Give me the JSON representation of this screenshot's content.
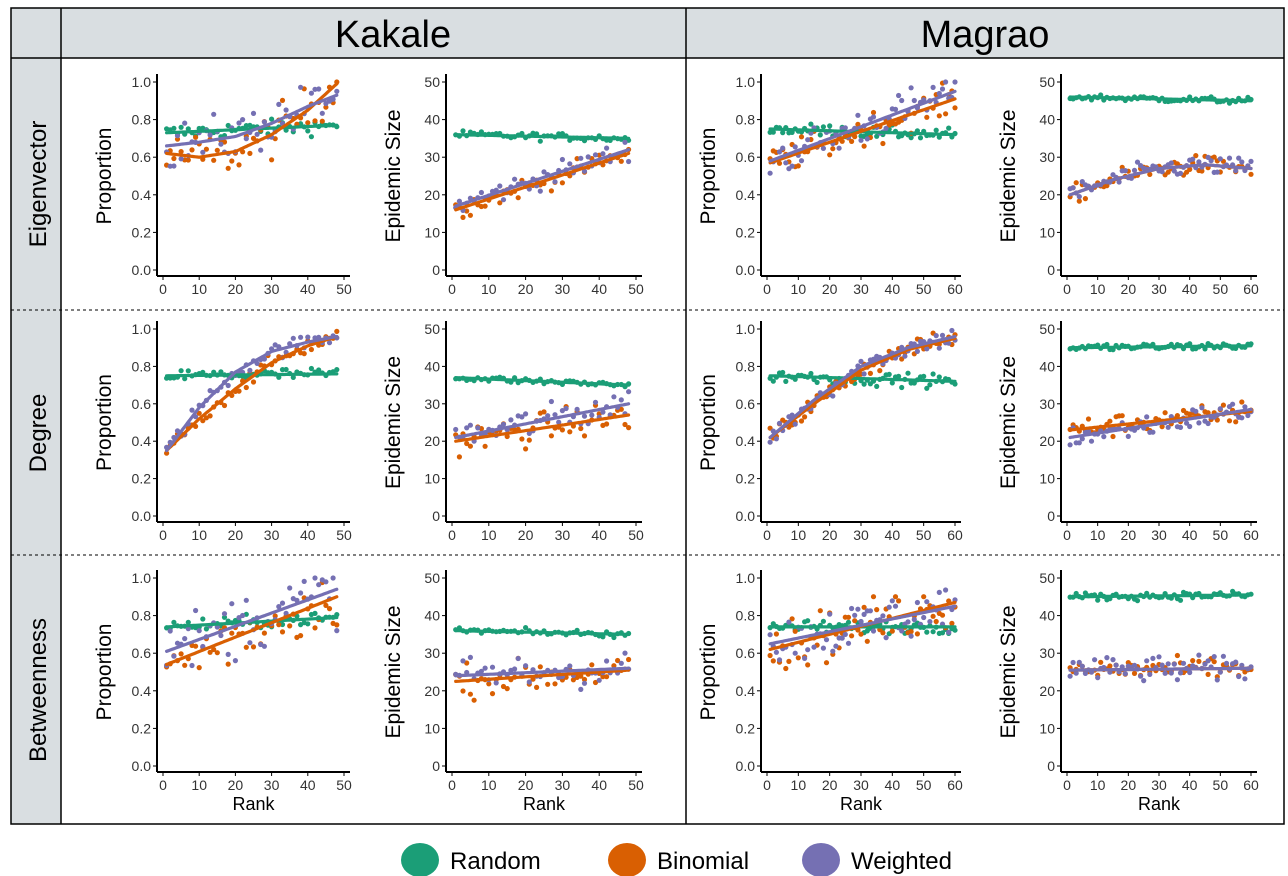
{
  "sites": [
    "Kakale",
    "Magrao"
  ],
  "measures": [
    "Eigenvector",
    "Degree",
    "Betweenness"
  ],
  "ylabels": {
    "proportion": "Proportion",
    "epidemic": "Epidemic Size"
  },
  "xlabel": "Rank",
  "legend": [
    {
      "name": "Random",
      "color": "#1b9e77"
    },
    {
      "name": "Binomial",
      "color": "#d95f02"
    },
    {
      "name": "Weighted",
      "color": "#7570b3"
    }
  ],
  "colors": {
    "Random": "#1b9e77",
    "Binomial": "#d95f02",
    "Weighted": "#7570b3",
    "header_bg": "#d9dee1"
  },
  "chart_data": [
    {
      "type": "scatter",
      "site": "Kakale",
      "measure": "Eigenvector",
      "ylabel": "Proportion",
      "xlabel": "",
      "xlim": [
        0,
        50
      ],
      "ylim": [
        0,
        1
      ],
      "xticks": [
        "0",
        "10",
        "20",
        "30",
        "40",
        "50"
      ],
      "yticks": [
        "0.0",
        "0.2",
        "0.4",
        "0.6",
        "0.8",
        "1.0"
      ],
      "trend": {
        "Random": [
          [
            1,
            0.73
          ],
          [
            48,
            0.77
          ]
        ],
        "Binomial": [
          [
            1,
            0.62
          ],
          [
            10,
            0.6
          ],
          [
            20,
            0.63
          ],
          [
            30,
            0.72
          ],
          [
            40,
            0.85
          ],
          [
            48,
            0.99
          ]
        ],
        "Weighted": [
          [
            1,
            0.66
          ],
          [
            10,
            0.68
          ],
          [
            20,
            0.71
          ],
          [
            30,
            0.78
          ],
          [
            40,
            0.87
          ],
          [
            48,
            0.93
          ]
        ]
      },
      "spread": {
        "Random": 0.05,
        "Binomial": 0.15,
        "Weighted": 0.15
      }
    },
    {
      "type": "scatter",
      "site": "Kakale",
      "measure": "Eigenvector",
      "ylabel": "Epidemic Size",
      "xlabel": "",
      "xlim": [
        0,
        50
      ],
      "ylim": [
        0,
        50
      ],
      "xticks": [
        "0",
        "10",
        "20",
        "30",
        "40",
        "50"
      ],
      "yticks": [
        "0",
        "10",
        "20",
        "30",
        "40",
        "50"
      ],
      "trend": {
        "Random": [
          [
            1,
            36
          ],
          [
            48,
            35
          ]
        ],
        "Binomial": [
          [
            1,
            16
          ],
          [
            48,
            31
          ]
        ],
        "Weighted": [
          [
            1,
            17
          ],
          [
            48,
            32
          ]
        ]
      },
      "spread": {
        "Random": 1.2,
        "Binomial": 3,
        "Weighted": 3.5
      }
    },
    {
      "type": "scatter",
      "site": "Magrao",
      "measure": "Eigenvector",
      "ylabel": "Proportion",
      "xlabel": "",
      "xlim": [
        0,
        60
      ],
      "ylim": [
        0,
        1
      ],
      "xticks": [
        "0",
        "10",
        "20",
        "30",
        "40",
        "50",
        "60"
      ],
      "yticks": [
        "0.0",
        "0.2",
        "0.4",
        "0.6",
        "0.8",
        "1.0"
      ],
      "trend": {
        "Random": [
          [
            1,
            0.75
          ],
          [
            60,
            0.72
          ]
        ],
        "Binomial": [
          [
            1,
            0.57
          ],
          [
            60,
            0.91
          ]
        ],
        "Weighted": [
          [
            1,
            0.58
          ],
          [
            60,
            0.95
          ]
        ]
      },
      "spread": {
        "Random": 0.04,
        "Binomial": 0.1,
        "Weighted": 0.12
      }
    },
    {
      "type": "scatter",
      "site": "Magrao",
      "measure": "Eigenvector",
      "ylabel": "Epidemic Size",
      "xlabel": "",
      "xlim": [
        0,
        60
      ],
      "ylim": [
        0,
        50
      ],
      "xticks": [
        "0",
        "10",
        "20",
        "30",
        "40",
        "50",
        "60"
      ],
      "yticks": [
        "0",
        "10",
        "20",
        "30",
        "40",
        "50"
      ],
      "trend": {
        "Random": [
          [
            1,
            46
          ],
          [
            60,
            45
          ]
        ],
        "Binomial": [
          [
            1,
            20
          ],
          [
            15,
            24
          ],
          [
            30,
            27
          ],
          [
            45,
            28
          ],
          [
            60,
            27
          ]
        ],
        "Weighted": [
          [
            1,
            20
          ],
          [
            15,
            24
          ],
          [
            30,
            27
          ],
          [
            45,
            28
          ],
          [
            60,
            27
          ]
        ]
      },
      "spread": {
        "Random": 1,
        "Binomial": 3,
        "Weighted": 3
      }
    },
    {
      "type": "scatter",
      "site": "Kakale",
      "measure": "Degree",
      "ylabel": "Proportion",
      "xlabel": "",
      "xlim": [
        0,
        50
      ],
      "ylim": [
        0,
        1
      ],
      "xticks": [
        "0",
        "10",
        "20",
        "30",
        "40",
        "50"
      ],
      "yticks": [
        "0.0",
        "0.2",
        "0.4",
        "0.6",
        "0.8",
        "1.0"
      ],
      "trend": {
        "Random": [
          [
            1,
            0.75
          ],
          [
            48,
            0.76
          ]
        ],
        "Binomial": [
          [
            1,
            0.35
          ],
          [
            10,
            0.52
          ],
          [
            20,
            0.68
          ],
          [
            30,
            0.82
          ],
          [
            40,
            0.91
          ],
          [
            48,
            0.96
          ]
        ],
        "Weighted": [
          [
            1,
            0.35
          ],
          [
            10,
            0.58
          ],
          [
            20,
            0.77
          ],
          [
            30,
            0.88
          ],
          [
            40,
            0.93
          ],
          [
            48,
            0.96
          ]
        ]
      },
      "spread": {
        "Random": 0.04,
        "Binomial": 0.05,
        "Weighted": 0.05
      }
    },
    {
      "type": "scatter",
      "site": "Kakale",
      "measure": "Degree",
      "ylabel": "Epidemic Size",
      "xlabel": "",
      "xlim": [
        0,
        50
      ],
      "ylim": [
        0,
        50
      ],
      "xticks": [
        "0",
        "10",
        "20",
        "30",
        "40",
        "50"
      ],
      "yticks": [
        "0",
        "10",
        "20",
        "30",
        "40",
        "50"
      ],
      "trend": {
        "Random": [
          [
            1,
            37
          ],
          [
            48,
            35
          ]
        ],
        "Binomial": [
          [
            1,
            20
          ],
          [
            48,
            27
          ]
        ],
        "Weighted": [
          [
            1,
            21
          ],
          [
            48,
            30
          ]
        ]
      },
      "spread": {
        "Random": 1,
        "Binomial": 5,
        "Weighted": 5
      }
    },
    {
      "type": "scatter",
      "site": "Magrao",
      "measure": "Degree",
      "ylabel": "Proportion",
      "xlabel": "",
      "xlim": [
        0,
        60
      ],
      "ylim": [
        0,
        1
      ],
      "xticks": [
        "0",
        "10",
        "20",
        "30",
        "40",
        "50",
        "60"
      ],
      "yticks": [
        "0.0",
        "0.2",
        "0.4",
        "0.6",
        "0.8",
        "1.0"
      ],
      "trend": {
        "Random": [
          [
            1,
            0.75
          ],
          [
            60,
            0.72
          ]
        ],
        "Binomial": [
          [
            1,
            0.42
          ],
          [
            15,
            0.6
          ],
          [
            30,
            0.78
          ],
          [
            45,
            0.89
          ],
          [
            60,
            0.95
          ]
        ],
        "Weighted": [
          [
            1,
            0.42
          ],
          [
            15,
            0.62
          ],
          [
            30,
            0.8
          ],
          [
            45,
            0.9
          ],
          [
            60,
            0.96
          ]
        ]
      },
      "spread": {
        "Random": 0.04,
        "Binomial": 0.06,
        "Weighted": 0.06
      }
    },
    {
      "type": "scatter",
      "site": "Magrao",
      "measure": "Degree",
      "ylabel": "Epidemic Size",
      "xlabel": "",
      "xlim": [
        0,
        60
      ],
      "ylim": [
        0,
        50
      ],
      "xticks": [
        "0",
        "10",
        "20",
        "30",
        "40",
        "50",
        "60"
      ],
      "yticks": [
        "0",
        "10",
        "20",
        "30",
        "40",
        "50"
      ],
      "trend": {
        "Random": [
          [
            1,
            45
          ],
          [
            60,
            45.5
          ]
        ],
        "Binomial": [
          [
            1,
            23
          ],
          [
            60,
            28
          ]
        ],
        "Weighted": [
          [
            1,
            21
          ],
          [
            60,
            28.5
          ]
        ]
      },
      "spread": {
        "Random": 1.2,
        "Binomial": 3.5,
        "Weighted": 3.5
      }
    },
    {
      "type": "scatter",
      "site": "Kakale",
      "measure": "Betweenness",
      "ylabel": "Proportion",
      "xlabel": "Rank",
      "xlim": [
        0,
        50
      ],
      "ylim": [
        0,
        1
      ],
      "xticks": [
        "0",
        "10",
        "20",
        "30",
        "40",
        "50"
      ],
      "yticks": [
        "0.0",
        "0.2",
        "0.4",
        "0.6",
        "0.8",
        "1.0"
      ],
      "trend": {
        "Random": [
          [
            1,
            0.74
          ],
          [
            48,
            0.79
          ]
        ],
        "Binomial": [
          [
            1,
            0.54
          ],
          [
            48,
            0.9
          ]
        ],
        "Weighted": [
          [
            1,
            0.61
          ],
          [
            48,
            0.94
          ]
        ]
      },
      "spread": {
        "Random": 0.04,
        "Binomial": 0.18,
        "Weighted": 0.2
      }
    },
    {
      "type": "scatter",
      "site": "Kakale",
      "measure": "Betweenness",
      "ylabel": "Epidemic Size",
      "xlabel": "Rank",
      "xlim": [
        0,
        50
      ],
      "ylim": [
        0,
        50
      ],
      "xticks": [
        "0",
        "10",
        "20",
        "30",
        "40",
        "50"
      ],
      "yticks": [
        "0",
        "10",
        "20",
        "30",
        "40",
        "50"
      ],
      "trend": {
        "Random": [
          [
            1,
            36
          ],
          [
            48,
            35
          ]
        ],
        "Binomial": [
          [
            1,
            22.5
          ],
          [
            48,
            25.5
          ]
        ],
        "Weighted": [
          [
            1,
            24
          ],
          [
            48,
            26
          ]
        ]
      },
      "spread": {
        "Random": 1,
        "Binomial": 5,
        "Weighted": 5.5
      }
    },
    {
      "type": "scatter",
      "site": "Magrao",
      "measure": "Betweenness",
      "ylabel": "Proportion",
      "xlabel": "Rank",
      "xlim": [
        0,
        60
      ],
      "ylim": [
        0,
        1
      ],
      "xticks": [
        "0",
        "10",
        "20",
        "30",
        "40",
        "50",
        "60"
      ],
      "yticks": [
        "0.0",
        "0.2",
        "0.4",
        "0.6",
        "0.8",
        "1.0"
      ],
      "trend": {
        "Random": [
          [
            1,
            0.74
          ],
          [
            60,
            0.74
          ]
        ],
        "Binomial": [
          [
            1,
            0.62
          ],
          [
            60,
            0.87
          ]
        ],
        "Weighted": [
          [
            1,
            0.65
          ],
          [
            60,
            0.85
          ]
        ]
      },
      "spread": {
        "Random": 0.04,
        "Binomial": 0.16,
        "Weighted": 0.16
      }
    },
    {
      "type": "scatter",
      "site": "Magrao",
      "measure": "Betweenness",
      "ylabel": "Epidemic Size",
      "xlabel": "Rank",
      "xlim": [
        0,
        60
      ],
      "ylim": [
        0,
        50
      ],
      "xticks": [
        "0",
        "10",
        "20",
        "30",
        "40",
        "50",
        "60"
      ],
      "yticks": [
        "0",
        "10",
        "20",
        "30",
        "40",
        "50"
      ],
      "trend": {
        "Random": [
          [
            1,
            45
          ],
          [
            60,
            45.5
          ]
        ],
        "Binomial": [
          [
            1,
            25.5
          ],
          [
            60,
            26
          ]
        ],
        "Weighted": [
          [
            1,
            25.5
          ],
          [
            60,
            26
          ]
        ]
      },
      "spread": {
        "Random": 1.2,
        "Binomial": 3.5,
        "Weighted": 4
      }
    }
  ]
}
